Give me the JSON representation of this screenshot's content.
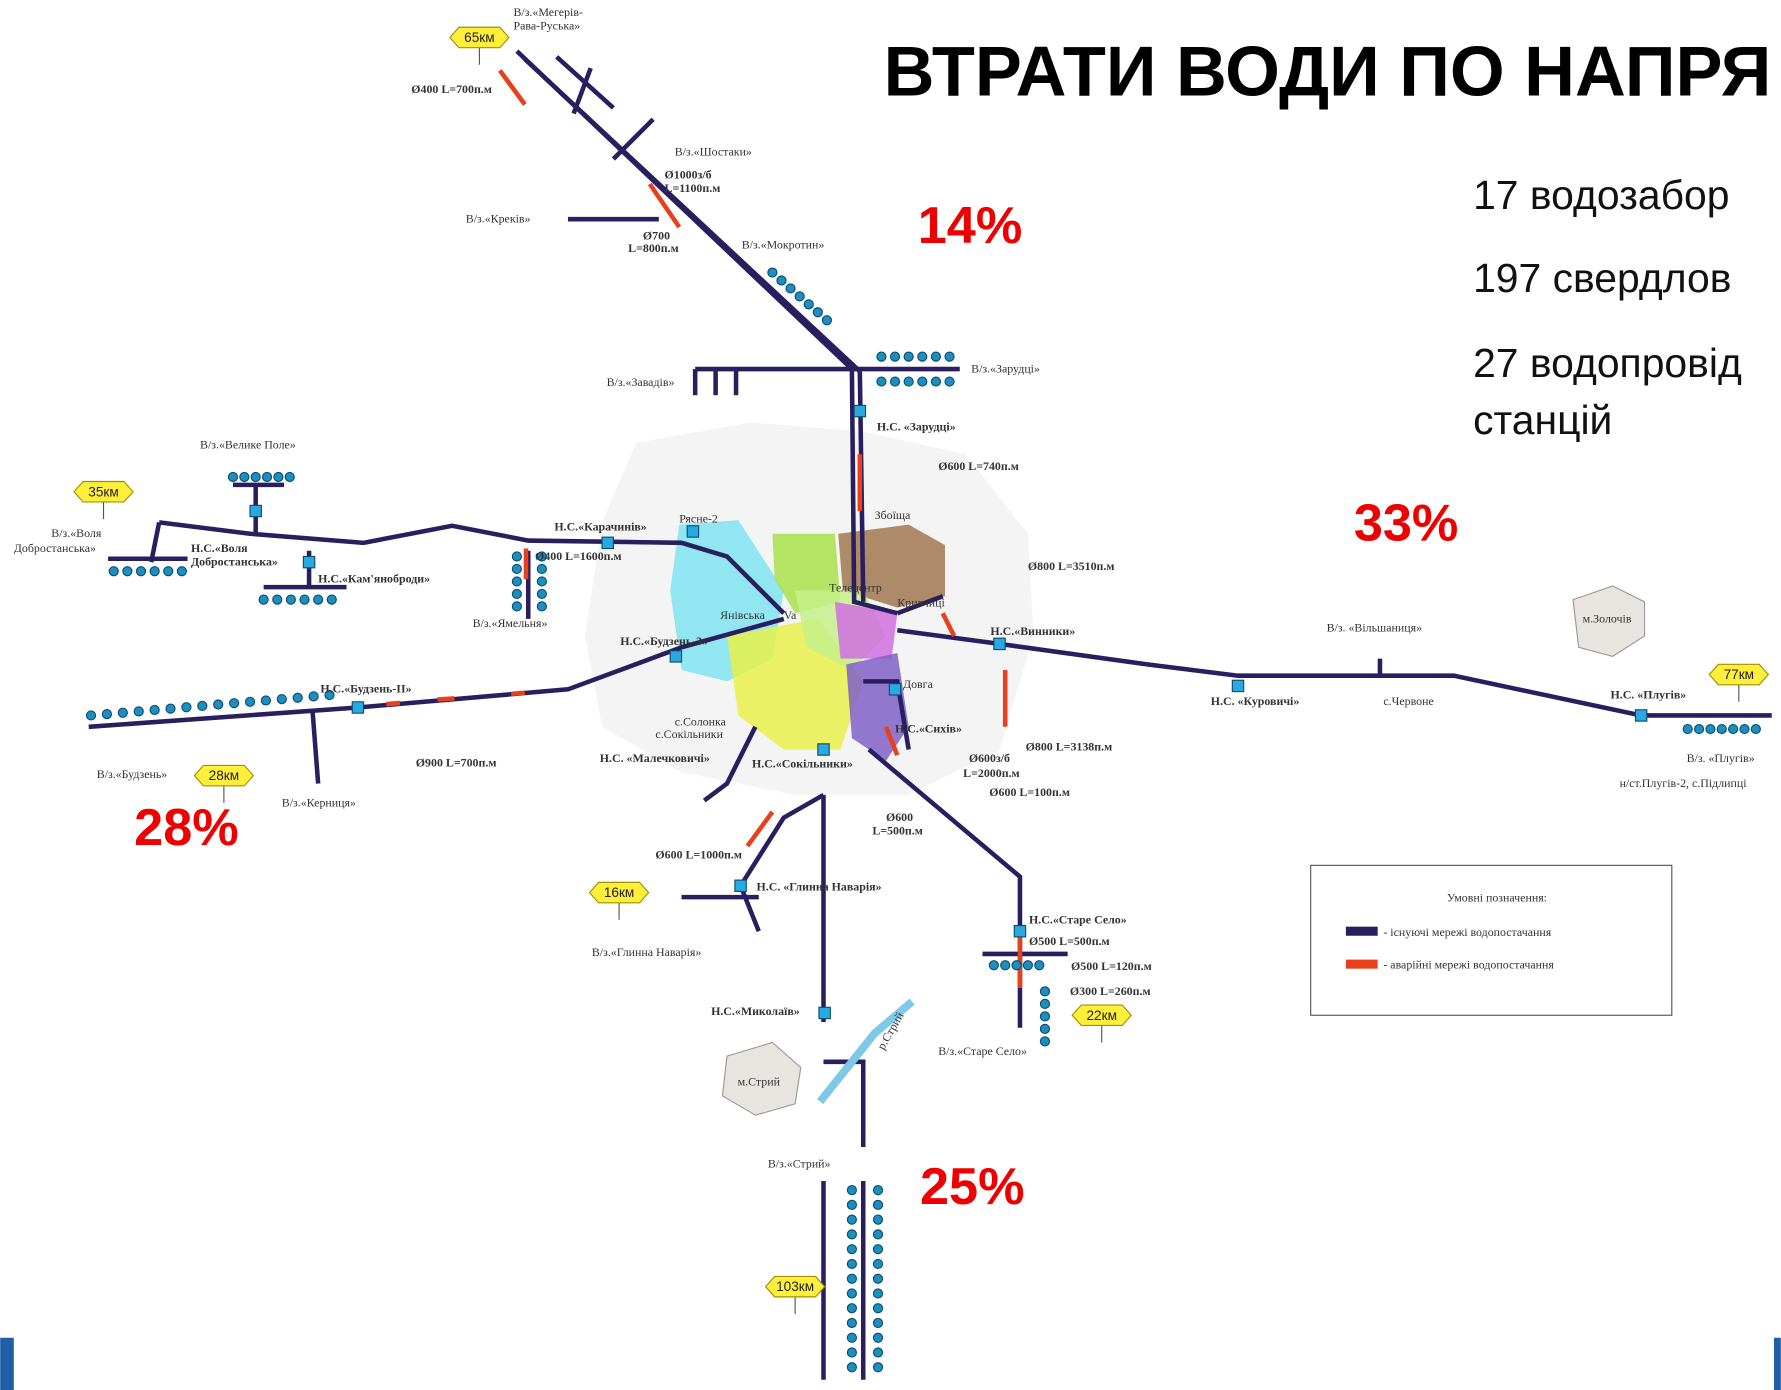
{
  "title": "ВТРАТИ ВОДИ ПО НАПРЯ",
  "facts": [
    "17 водозабор",
    "197 свердлов",
    "27 водопровід",
    "станцій"
  ],
  "losses": [
    "14%",
    "33%",
    "28%",
    "25%"
  ],
  "intakes": [
    "В/з.«Мегерів-",
    "Рава-Руська»",
    "В/з.«Шостаки»",
    "В/з.«Креків»",
    "В/з.«Мокротин»",
    "В/з.«Зарудці»",
    "В/з.«Завадів»",
    "В/з.«Велике Поле»",
    "В/з.«Воля",
    "Добростанська»",
    "В/з.«Ямельня»",
    "В/з.«Будзень»",
    "В/з.«Керниця»",
    "В/з. «Вільшаниця»",
    "В/з. «Плугів»",
    "В/з.«Глинна Наварія»",
    "В/з.«Старе Село»",
    "В/з.«Стрий»"
  ],
  "stations": [
    "Н.С. «Зарудці»",
    "Н.С.«Карачинів»",
    "Н.С.«Воля",
    "Добростанська»",
    "Н.С.«Кам'яноброди»",
    "Н.С.«Будзень-3»",
    "Н.С.«Будзень-ІІ»",
    "Н.С.«Винники»",
    "Н.С. «Куровичі»",
    "Н.С. «Плугів»",
    "Н.С.«Сихів»",
    "Н.С. «Малечковичі»",
    "Н.С.«Сокільники»",
    "Н.С. «Глинна Наварія»",
    "Н.С.«Старе Село»",
    "Н.С.«Миколаїв»"
  ],
  "pipes": [
    "Ø400 L=700п.м",
    "Ø1000з/б",
    "L=1100п.м",
    "Ø700",
    "L=800п.м",
    "Ø600 L=740п.м",
    "Ø400 L=1600п.м",
    "Ø800 L=3510п.м",
    "Ø900 L=700п.м",
    "Ø800 L=3138п.м",
    "Ø600з/б",
    "L=2000п.м",
    "Ø600 L=100п.м",
    "Ø600",
    "L=500п.м",
    "Ø600 L=1000п.м",
    "Ø500 L=500п.м",
    "Ø500 L=120п.м",
    "Ø300 L=260п.м"
  ],
  "distances": [
    "65км",
    "35км",
    "28км",
    "16км",
    "22км",
    "77км",
    "103км"
  ],
  "places": [
    "м.Золочів",
    "м.Стрий",
    "р.Стрий",
    "с.Червоне",
    "н/ст.Плугів-2, с.Підлипці",
    "Збоїща",
    "Рясне-2",
    "Телецентр",
    "Кривчиці",
    "Янівська",
    "Va",
    "Довга",
    "с.Солонка",
    "с.Сокільники"
  ],
  "legend": {
    "title": "Умовні позначення:",
    "items": [
      "- існуючі мережі водопостачання",
      "- аварійні мережі водопостачання"
    ]
  }
}
